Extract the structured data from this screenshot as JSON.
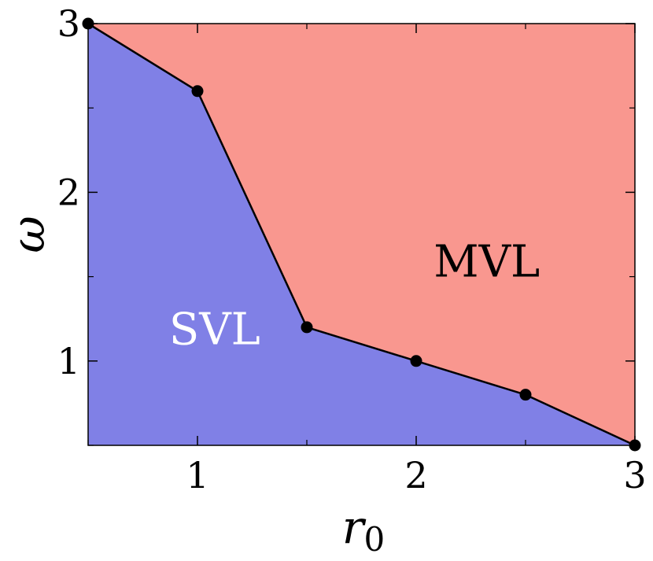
{
  "chart_data": {
    "type": "area",
    "title": "",
    "xlabel": "r",
    "xlabel_subscript": "0",
    "ylabel": "ω",
    "xlim": [
      0.5,
      3
    ],
    "ylim": [
      0.5,
      3
    ],
    "x_ticks": [
      1,
      2,
      3
    ],
    "y_ticks": [
      1,
      2,
      3
    ],
    "x_tick_labels": [
      "1",
      "2",
      "3"
    ],
    "y_tick_labels": [
      "1",
      "2",
      "3"
    ],
    "grid": false,
    "boundary": {
      "x": [
        0.5,
        1.0,
        1.5,
        2.0,
        2.5,
        3.0
      ],
      "y": [
        3.0,
        2.6,
        1.2,
        1.0,
        0.8,
        0.5
      ]
    },
    "regions": [
      {
        "label": "SVL",
        "color": "#8080e6",
        "text_color": "#ffffff",
        "side": "below",
        "label_pos": [
          0.87,
          1.1
        ]
      },
      {
        "label": "MVL",
        "color": "#f9978f",
        "text_color": "#000000",
        "side": "above",
        "label_pos": [
          2.08,
          1.5
        ]
      }
    ],
    "marker_color": "#000000",
    "line_color": "#000000"
  }
}
